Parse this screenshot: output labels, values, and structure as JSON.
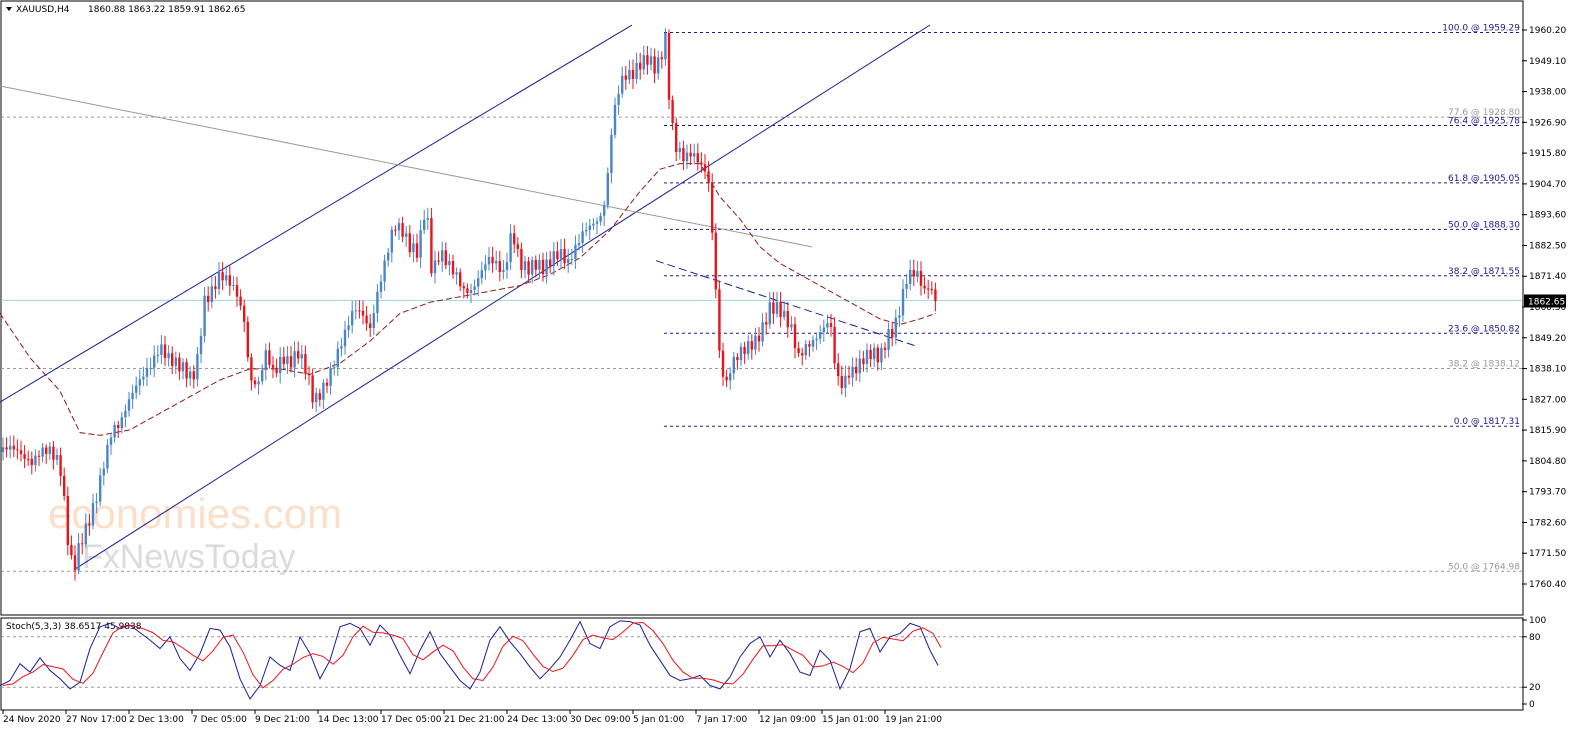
{
  "header": {
    "symbol_tf": "XAUUSD,H4",
    "ohlc": "1860.88 1863.22 1859.91 1862.65"
  },
  "price_axis": {
    "ticks": [
      "1960.20",
      "1949.10",
      "1938.00",
      "1926.90",
      "1915.80",
      "1904.70",
      "1893.60",
      "1882.50",
      "1871.40",
      "1860.30",
      "1849.20",
      "1838.10",
      "1827.00",
      "1815.90",
      "1804.80",
      "1793.70",
      "1782.60",
      "1771.50",
      "1760.40"
    ],
    "current_price": "1862.65"
  },
  "time_axis": {
    "ticks": [
      "24 Nov 2020",
      "27 Nov 17:00",
      "2 Dec 13:00",
      "7 Dec 05:00",
      "9 Dec 21:00",
      "14 Dec 13:00",
      "17 Dec 05:00",
      "21 Dec 21:00",
      "24 Dec 13:00",
      "30 Dec 09:00",
      "5 Jan 01:00",
      "7 Jan 17:00",
      "12 Jan 09:00",
      "15 Jan 01:00",
      "19 Jan 21:00"
    ]
  },
  "fib_levels": [
    {
      "text": "100.0 @ 1959.29",
      "price": 1959.29,
      "color": "#1a1a8c",
      "dash": true
    },
    {
      "text": "77.6 @ 1928.80",
      "price": 1928.8,
      "color": "#999999",
      "dash": true
    },
    {
      "text": "76.4 @ 1925.78",
      "price": 1925.78,
      "color": "#1a1a8c",
      "dash": true
    },
    {
      "text": "61.8 @ 1905.05",
      "price": 1905.05,
      "color": "#1a1a8c",
      "dash": true
    },
    {
      "text": "50.0 @ 1888.30",
      "price": 1888.3,
      "color": "#1a1a8c",
      "dash": true
    },
    {
      "text": "38.2 @ 1871.55",
      "price": 1871.55,
      "color": "#1a1a8c",
      "dash": true
    },
    {
      "text": "23.6 @ 1850.82",
      "price": 1850.82,
      "color": "#1a1a8c",
      "dash": true
    },
    {
      "text": "38.2 @ 1838.12",
      "price": 1838.12,
      "color": "#999999",
      "dash": true
    },
    {
      "text": "0.0 @ 1817.31",
      "price": 1817.31,
      "color": "#1a1a8c",
      "dash": true
    },
    {
      "text": "50.0 @ 1764.98",
      "price": 1764.98,
      "color": "#999999",
      "dash": true
    }
  ],
  "stoch": {
    "label": "Stoch(5,3,3) 38.6517 45.9838",
    "ticks": [
      "100",
      "80",
      "20",
      "0"
    ]
  },
  "watermark": {
    "line1": "economies.com",
    "line2": "FxNewsToday"
  },
  "colors": {
    "bull": "#4a86c5",
    "bear": "#e8141c",
    "ma": "#8b1a1a",
    "channel": "#1c1c9c",
    "stoch_main": "#1c1c9c",
    "stoch_signal": "#e8141c",
    "price_line": "#a8d8ea"
  },
  "chart_data": {
    "type": "candlestick",
    "symbol": "XAUUSD",
    "timeframe": "H4",
    "ylim": [
      1760.4,
      1960.2
    ],
    "last_price": 1862.65,
    "close_path": [
      [
        0,
        1808
      ],
      [
        8,
        1810
      ],
      [
        16,
        1809
      ],
      [
        24,
        1806
      ],
      [
        32,
        1804
      ],
      [
        40,
        1808
      ],
      [
        48,
        1809
      ],
      [
        56,
        1806
      ],
      [
        62,
        1800
      ],
      [
        66,
        1782
      ],
      [
        70,
        1770
      ],
      [
        74,
        1766
      ],
      [
        80,
        1775
      ],
      [
        88,
        1782
      ],
      [
        96,
        1791
      ],
      [
        104,
        1804
      ],
      [
        112,
        1816
      ],
      [
        120,
        1818
      ],
      [
        128,
        1826
      ],
      [
        136,
        1832
      ],
      [
        144,
        1836
      ],
      [
        152,
        1840
      ],
      [
        160,
        1846
      ],
      [
        168,
        1842
      ],
      [
        176,
        1840
      ],
      [
        184,
        1838
      ],
      [
        192,
        1834
      ],
      [
        198,
        1842
      ],
      [
        204,
        1862
      ],
      [
        212,
        1866
      ],
      [
        220,
        1872
      ],
      [
        228,
        1870
      ],
      [
        236,
        1866
      ],
      [
        244,
        1856
      ],
      [
        250,
        1834
      ],
      [
        258,
        1832
      ],
      [
        266,
        1844
      ],
      [
        274,
        1836
      ],
      [
        282,
        1842
      ],
      [
        290,
        1840
      ],
      [
        298,
        1844
      ],
      [
        306,
        1838
      ],
      [
        314,
        1826
      ],
      [
        322,
        1830
      ],
      [
        330,
        1836
      ],
      [
        338,
        1844
      ],
      [
        346,
        1852
      ],
      [
        354,
        1860
      ],
      [
        362,
        1858
      ],
      [
        370,
        1852
      ],
      [
        378,
        1866
      ],
      [
        386,
        1878
      ],
      [
        394,
        1890
      ],
      [
        402,
        1888
      ],
      [
        410,
        1882
      ],
      [
        418,
        1880
      ],
      [
        426,
        1898
      ],
      [
        432,
        1872
      ],
      [
        440,
        1880
      ],
      [
        448,
        1876
      ],
      [
        456,
        1872
      ],
      [
        464,
        1866
      ],
      [
        472,
        1866
      ],
      [
        480,
        1872
      ],
      [
        488,
        1878
      ],
      [
        496,
        1876
      ],
      [
        504,
        1872
      ],
      [
        512,
        1888
      ],
      [
        520,
        1876
      ],
      [
        528,
        1874
      ],
      [
        536,
        1876
      ],
      [
        544,
        1874
      ],
      [
        552,
        1878
      ],
      [
        560,
        1880
      ],
      [
        568,
        1876
      ],
      [
        576,
        1882
      ],
      [
        584,
        1888
      ],
      [
        592,
        1890
      ],
      [
        600,
        1892
      ],
      [
        606,
        1900
      ],
      [
        612,
        1926
      ],
      [
        618,
        1938
      ],
      [
        624,
        1944
      ],
      [
        632,
        1944
      ],
      [
        640,
        1948
      ],
      [
        648,
        1950
      ],
      [
        656,
        1946
      ],
      [
        662,
        1952
      ],
      [
        666,
        1958
      ],
      [
        670,
        1930
      ],
      [
        676,
        1918
      ],
      [
        684,
        1914
      ],
      [
        692,
        1916
      ],
      [
        700,
        1912
      ],
      [
        708,
        1908
      ],
      [
        712,
        1888
      ],
      [
        716,
        1866
      ],
      [
        720,
        1840
      ],
      [
        726,
        1832
      ],
      [
        732,
        1840
      ],
      [
        740,
        1844
      ],
      [
        748,
        1846
      ],
      [
        756,
        1848
      ],
      [
        762,
        1852
      ],
      [
        770,
        1860
      ],
      [
        778,
        1860
      ],
      [
        786,
        1856
      ],
      [
        792,
        1852
      ],
      [
        798,
        1842
      ],
      [
        806,
        1846
      ],
      [
        814,
        1848
      ],
      [
        822,
        1852
      ],
      [
        830,
        1856
      ],
      [
        836,
        1836
      ],
      [
        842,
        1832
      ],
      [
        848,
        1836
      ],
      [
        856,
        1838
      ],
      [
        864,
        1842
      ],
      [
        872,
        1844
      ],
      [
        880,
        1842
      ],
      [
        888,
        1850
      ],
      [
        894,
        1852
      ],
      [
        900,
        1860
      ],
      [
        906,
        1870
      ],
      [
        912,
        1873
      ],
      [
        918,
        1872
      ],
      [
        924,
        1866
      ],
      [
        930,
        1868
      ],
      [
        936,
        1862
      ]
    ],
    "stoch_path": [
      [
        0,
        22
      ],
      [
        10,
        28
      ],
      [
        20,
        48
      ],
      [
        30,
        38
      ],
      [
        40,
        55
      ],
      [
        50,
        40
      ],
      [
        60,
        30
      ],
      [
        70,
        18
      ],
      [
        80,
        26
      ],
      [
        90,
        66
      ],
      [
        100,
        92
      ],
      [
        110,
        96
      ],
      [
        120,
        90
      ],
      [
        130,
        94
      ],
      [
        140,
        85
      ],
      [
        150,
        76
      ],
      [
        160,
        66
      ],
      [
        170,
        80
      ],
      [
        180,
        54
      ],
      [
        190,
        40
      ],
      [
        200,
        60
      ],
      [
        210,
        90
      ],
      [
        220,
        88
      ],
      [
        230,
        68
      ],
      [
        240,
        30
      ],
      [
        250,
        6
      ],
      [
        260,
        22
      ],
      [
        270,
        56
      ],
      [
        280,
        46
      ],
      [
        290,
        40
      ],
      [
        300,
        80
      ],
      [
        310,
        60
      ],
      [
        320,
        30
      ],
      [
        330,
        52
      ],
      [
        340,
        92
      ],
      [
        350,
        96
      ],
      [
        360,
        90
      ],
      [
        370,
        70
      ],
      [
        380,
        94
      ],
      [
        390,
        82
      ],
      [
        400,
        58
      ],
      [
        410,
        36
      ],
      [
        420,
        64
      ],
      [
        430,
        86
      ],
      [
        440,
        60
      ],
      [
        450,
        44
      ],
      [
        460,
        28
      ],
      [
        470,
        18
      ],
      [
        480,
        38
      ],
      [
        490,
        76
      ],
      [
        500,
        92
      ],
      [
        510,
        74
      ],
      [
        520,
        60
      ],
      [
        530,
        44
      ],
      [
        540,
        30
      ],
      [
        550,
        42
      ],
      [
        560,
        56
      ],
      [
        570,
        76
      ],
      [
        580,
        98
      ],
      [
        590,
        72
      ],
      [
        600,
        66
      ],
      [
        610,
        92
      ],
      [
        620,
        99
      ],
      [
        630,
        98
      ],
      [
        640,
        94
      ],
      [
        650,
        70
      ],
      [
        660,
        52
      ],
      [
        670,
        34
      ],
      [
        680,
        28
      ],
      [
        690,
        30
      ],
      [
        700,
        34
      ],
      [
        710,
        22
      ],
      [
        720,
        18
      ],
      [
        730,
        32
      ],
      [
        740,
        56
      ],
      [
        750,
        72
      ],
      [
        760,
        80
      ],
      [
        770,
        56
      ],
      [
        780,
        76
      ],
      [
        790,
        60
      ],
      [
        800,
        38
      ],
      [
        810,
        34
      ],
      [
        820,
        64
      ],
      [
        830,
        52
      ],
      [
        840,
        18
      ],
      [
        850,
        42
      ],
      [
        860,
        86
      ],
      [
        870,
        90
      ],
      [
        880,
        62
      ],
      [
        890,
        80
      ],
      [
        900,
        84
      ],
      [
        910,
        96
      ],
      [
        920,
        92
      ],
      [
        930,
        64
      ],
      [
        938,
        46
      ]
    ],
    "moving_average": [
      [
        0,
        1858
      ],
      [
        30,
        1842
      ],
      [
        60,
        1830
      ],
      [
        80,
        1815
      ],
      [
        100,
        1814
      ],
      [
        130,
        1816
      ],
      [
        160,
        1822
      ],
      [
        190,
        1828
      ],
      [
        220,
        1834
      ],
      [
        250,
        1838
      ],
      [
        280,
        1838
      ],
      [
        310,
        1836
      ],
      [
        340,
        1840
      ],
      [
        370,
        1848
      ],
      [
        400,
        1858
      ],
      [
        430,
        1862
      ],
      [
        460,
        1864
      ],
      [
        490,
        1866
      ],
      [
        520,
        1868
      ],
      [
        550,
        1872
      ],
      [
        580,
        1878
      ],
      [
        610,
        1888
      ],
      [
        640,
        1902
      ],
      [
        660,
        1910
      ],
      [
        680,
        1912
      ],
      [
        700,
        1912
      ],
      [
        720,
        1900
      ],
      [
        740,
        1892
      ],
      [
        760,
        1882
      ],
      [
        780,
        1876
      ],
      [
        800,
        1872
      ],
      [
        830,
        1866
      ],
      [
        860,
        1860
      ],
      [
        880,
        1856
      ],
      [
        900,
        1854
      ],
      [
        920,
        1856
      ],
      [
        936,
        1858
      ]
    ],
    "trendlines": [
      {
        "name": "channel_upper",
        "points": [
          [
            0,
            1826
          ],
          [
            632,
            1962
          ]
        ],
        "color": "#1c1c9c",
        "dash": false
      },
      {
        "name": "channel_lower",
        "points": [
          [
            76,
            1766
          ],
          [
            930,
            1962
          ]
        ],
        "color": "#1c1c9c",
        "dash": false
      },
      {
        "name": "grey_resistance",
        "points": [
          [
            0,
            1940
          ],
          [
            812,
            1882
          ]
        ],
        "color": "#999999",
        "dash": false
      },
      {
        "name": "blue_dashed",
        "points": [
          [
            656,
            1877
          ],
          [
            918,
            1846
          ]
        ],
        "color": "#1c1c9c",
        "dash": true
      }
    ],
    "fib_line_start": 664,
    "grid": false,
    "legend": "none"
  }
}
